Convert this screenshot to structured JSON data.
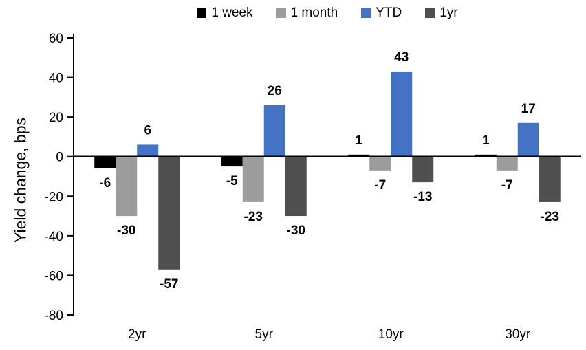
{
  "chart_data": {
    "type": "bar",
    "title": "",
    "xlabel": "",
    "ylabel": "Yield change, bps",
    "categories": [
      "2yr",
      "5yr",
      "10yr",
      "30yr"
    ],
    "series": [
      {
        "name": "1 week",
        "color": "#000000",
        "values": [
          -6,
          -5,
          1,
          1
        ]
      },
      {
        "name": "1 month",
        "color": "#9C9C9C",
        "values": [
          -30,
          -23,
          -7,
          -7
        ]
      },
      {
        "name": "YTD",
        "color": "#4472C4",
        "values": [
          6,
          26,
          43,
          17
        ]
      },
      {
        "name": "1yr",
        "color": "#4F4F4F",
        "values": [
          -57,
          -30,
          -13,
          -23
        ]
      }
    ],
    "ylim": [
      -80,
      60
    ],
    "ytick_step": 20,
    "yticks": [
      60,
      40,
      20,
      0,
      -20,
      -40,
      -60,
      -80
    ],
    "grid": false,
    "legend_position": "top",
    "data_labels": true,
    "axis_color": "#000000",
    "background_color": "#ffffff"
  }
}
